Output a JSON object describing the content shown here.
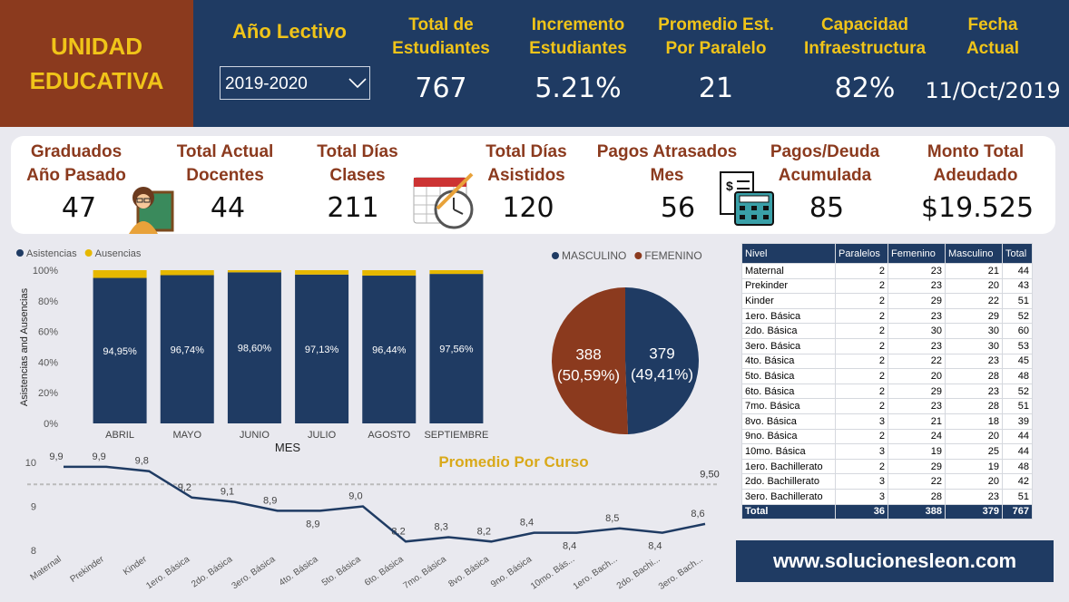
{
  "brand": {
    "lines": [
      "UNIDAD",
      "EDUCATIVA"
    ]
  },
  "year": {
    "label": "Año Lectivo",
    "selected": "2019-2020"
  },
  "header_kpis": [
    {
      "label": [
        "Total de",
        "Estudiantes"
      ],
      "value": "767"
    },
    {
      "label": [
        "Incremento",
        "Estudiantes"
      ],
      "value": "5.21%"
    },
    {
      "label": [
        "Promedio Est.",
        "Por Paralelo"
      ],
      "value": "21"
    },
    {
      "label": [
        "Capacidad",
        "Infraestructura"
      ],
      "value": "82%"
    },
    {
      "label": [
        "Fecha",
        "Actual"
      ],
      "value": "11/Oct/2019"
    }
  ],
  "kpis": [
    {
      "label": [
        "Graduados",
        "Año Pasado"
      ],
      "value": "47"
    },
    {
      "label": [
        "Total Actual",
        "Docentes"
      ],
      "value": "44"
    },
    {
      "label": [
        "Total Días",
        "Clases"
      ],
      "value": "211"
    },
    {
      "label": [
        "Total Días",
        "Asistidos"
      ],
      "value": "120"
    },
    {
      "label": [
        "Pagos Atrasados",
        "Mes"
      ],
      "value": "56"
    },
    {
      "label": [
        "Pagos/Deuda",
        "Acumulada"
      ],
      "value": "85"
    },
    {
      "label": [
        "Monto Total",
        "Adeudado"
      ],
      "value": "$19.525"
    }
  ],
  "table": {
    "columns": [
      "Nivel",
      "Paralelos",
      "Femenino",
      "Masculino",
      "Total"
    ],
    "rows": [
      [
        "Maternal",
        2,
        23,
        21,
        44
      ],
      [
        "Prekinder",
        2,
        23,
        20,
        43
      ],
      [
        "Kinder",
        2,
        29,
        22,
        51
      ],
      [
        "1ero. Básica",
        2,
        23,
        29,
        52
      ],
      [
        "2do. Básica",
        2,
        30,
        30,
        60
      ],
      [
        "3ero. Básica",
        2,
        23,
        30,
        53
      ],
      [
        "4to. Básica",
        2,
        22,
        23,
        45
      ],
      [
        "5to. Básica",
        2,
        20,
        28,
        48
      ],
      [
        "6to. Básica",
        2,
        29,
        23,
        52
      ],
      [
        "7mo. Básica",
        2,
        23,
        28,
        51
      ],
      [
        "8vo. Básica",
        3,
        21,
        18,
        39
      ],
      [
        "9no. Básica",
        2,
        24,
        20,
        44
      ],
      [
        "10mo. Básica",
        3,
        19,
        25,
        44
      ],
      [
        "1ero. Bachillerato",
        2,
        29,
        19,
        48
      ],
      [
        "2do. Bachillerato",
        3,
        22,
        20,
        42
      ],
      [
        "3ero. Bachillerato",
        3,
        28,
        23,
        51
      ]
    ],
    "total": [
      "Total",
      36,
      388,
      379,
      767
    ]
  },
  "chart_data": [
    {
      "type": "bar",
      "stacked": true,
      "categories": [
        "ABRIL",
        "MAYO",
        "JUNIO",
        "JULIO",
        "AGOSTO",
        "SEPTIEMBRE"
      ],
      "series": [
        {
          "name": "Asistencias",
          "color": "#1f3b63",
          "values": [
            94.95,
            96.74,
            98.6,
            97.13,
            96.44,
            97.56
          ],
          "value_labels": [
            "94,95%",
            "96,74%",
            "98,60%",
            "97,13%",
            "96,44%",
            "97,56%"
          ]
        },
        {
          "name": "Ausencias",
          "color": "#e6b800",
          "values": [
            5.05,
            3.26,
            1.4,
            2.87,
            3.56,
            2.44
          ]
        }
      ],
      "x_label": "MES",
      "y_label": "Asistencias and Ausencias",
      "legend": "top-left",
      "grid": false,
      "ylim": [
        0,
        100
      ],
      "yticks": [
        {
          "value": 0,
          "label": "0%"
        },
        {
          "value": 20,
          "label": "20%"
        },
        {
          "value": 40,
          "label": "40%"
        },
        {
          "value": 60,
          "label": "60%"
        },
        {
          "value": 80,
          "label": "80%"
        },
        {
          "value": 100,
          "label": "100%"
        }
      ]
    },
    {
      "type": "pie",
      "categories": [
        "MASCULINO",
        "FEMENINO"
      ],
      "values": [
        379,
        388
      ],
      "colors": [
        "#1f3b63",
        "#8b3a1e"
      ],
      "percent_labels": [
        "(49,41%)",
        "(50,59%)"
      ],
      "legend": "top"
    },
    {
      "type": "line",
      "title": "Promedio Por Curso",
      "color": "#1f3b63",
      "categories": [
        "Maternal",
        "Prekinder",
        "Kinder",
        "1ero. Básica",
        "2do. Básica",
        "3ero. Básica",
        "4to. Básica",
        "5to. Básica",
        "6to. Básica",
        "7mo. Básica",
        "8vo. Básica",
        "9no. Básica",
        "10mo. Bás...",
        "1ero. Bach...",
        "2do. Bachi...",
        "3ero. Bach..."
      ],
      "values": [
        9.9,
        9.9,
        9.8,
        9.2,
        9.1,
        8.9,
        8.9,
        9.0,
        8.2,
        8.3,
        8.2,
        8.4,
        8.4,
        8.5,
        8.4,
        8.6
      ],
      "value_labels": [
        "9,9",
        "9,9",
        "9,8",
        "9,2",
        "9,1",
        "8,9",
        "8,9",
        "9,0",
        "8,2",
        "8,3",
        "8,2",
        "8,4",
        "8,4",
        "8,5",
        "8,4",
        "8,6"
      ],
      "reference": {
        "value": 9.5,
        "label": "9,50"
      },
      "grid": false,
      "ylim": [
        8,
        10
      ],
      "yticks": [
        8,
        9,
        10
      ]
    }
  ],
  "footer": {
    "url": "www.solucionesleon.com"
  }
}
